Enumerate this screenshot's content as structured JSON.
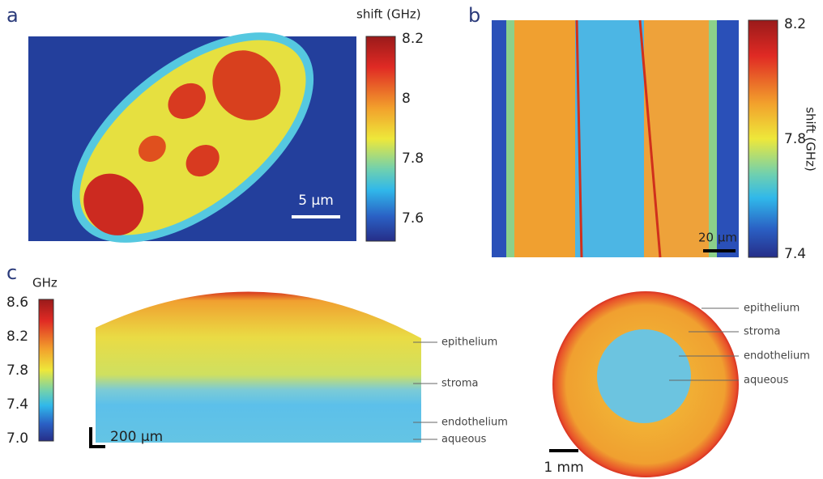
{
  "panels": [
    {
      "label": "a",
      "colorbar": {
        "title": "shift (GHz)",
        "ticks": [
          "8.2",
          "8",
          "7.8",
          "7.6"
        ]
      },
      "scalebar": "5 µm"
    },
    {
      "label": "b",
      "colorbar": {
        "title": "shift (GHz)",
        "ticks": [
          "8.2",
          "7.8",
          "7.4"
        ]
      },
      "scalebar": "20 µm"
    },
    {
      "label": "c",
      "colorbar": {
        "title": "GHz",
        "ticks": [
          "8.6",
          "8.2",
          "7.8",
          "7.4",
          "7.0"
        ]
      },
      "scalebar": "200 µm",
      "annotations": [
        "epithelium",
        "stroma",
        "endothelium",
        "aqueous"
      ],
      "scalebar2": "1 mm",
      "annotations2": [
        "epithelium",
        "stroma",
        "endothelium",
        "aqueous"
      ]
    }
  ]
}
